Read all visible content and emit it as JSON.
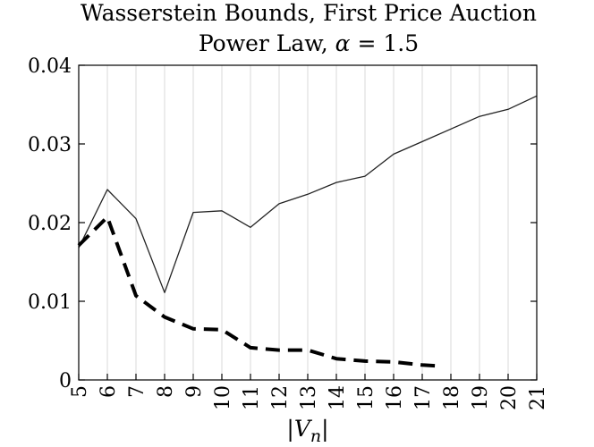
{
  "chart_data": {
    "type": "line",
    "title": "Wasserstein Bounds, First Price Auction",
    "subtitle": "Power Law, α = 1.5",
    "xlabel": "|V_n|",
    "ylabel": "",
    "xlim": [
      5,
      21
    ],
    "ylim": [
      0,
      0.04
    ],
    "grid": "vertical",
    "xticks": [
      5,
      6,
      7,
      8,
      9,
      10,
      11,
      12,
      13,
      14,
      15,
      16,
      17,
      18,
      19,
      20,
      21
    ],
    "yticks": [
      0,
      0.01,
      0.02,
      0.03,
      0.04
    ],
    "ytick_labels": [
      "0",
      "0.01",
      "0.02",
      "0.03",
      "0.04"
    ],
    "series": [
      {
        "style": "solid",
        "color": "#222222",
        "x": [
          5,
          6,
          7,
          8,
          9,
          10,
          11,
          12,
          13,
          14,
          15,
          16,
          17,
          18,
          19,
          20,
          21
        ],
        "values": [
          0.0168,
          0.0242,
          0.0205,
          0.0111,
          0.0213,
          0.0215,
          0.0194,
          0.0224,
          0.0236,
          0.0251,
          0.0259,
          0.0287,
          0.0303,
          0.0319,
          0.0335,
          0.0344,
          0.0361
        ]
      },
      {
        "style": "dashed",
        "color": "#000000",
        "x": [
          5,
          6,
          7,
          8,
          9,
          10,
          11,
          12,
          13,
          14,
          15,
          16,
          17,
          17.5
        ],
        "values": [
          0.0171,
          0.0207,
          0.0107,
          0.008,
          0.0065,
          0.0064,
          0.0041,
          0.0038,
          0.0038,
          0.0027,
          0.0024,
          0.0023,
          0.0019,
          0.0018
        ]
      }
    ]
  }
}
